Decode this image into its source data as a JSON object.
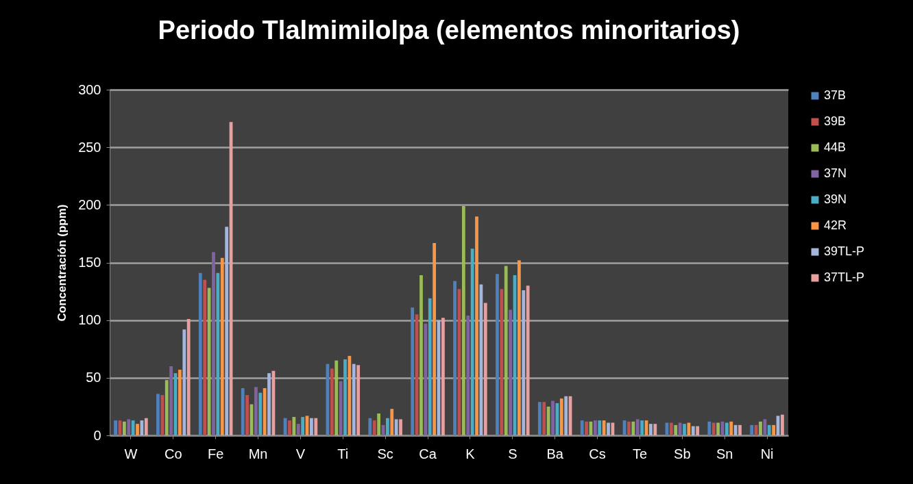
{
  "chart_data": {
    "type": "bar",
    "title": "Periodo Tlalmimilolpa (elementos minoritarios)",
    "ylabel": "Concentración  (ppm)",
    "categories": [
      "W",
      "Co",
      "Fe",
      "Mn",
      "V",
      "Ti",
      "Sc",
      "Ca",
      "K",
      "S",
      "Ba",
      "Cs",
      "Te",
      "Sb",
      "Sn",
      "Ni"
    ],
    "series": [
      {
        "name": "37B",
        "color": "#4f81bd",
        "values": [
          13,
          36,
          141,
          41,
          15,
          62,
          15,
          111,
          134,
          140,
          29,
          13,
          13,
          11,
          12,
          9
        ]
      },
      {
        "name": "39B",
        "color": "#c0504d",
        "values": [
          13,
          35,
          135,
          35,
          13,
          58,
          13,
          105,
          127,
          127,
          29,
          12,
          12,
          11,
          11,
          9
        ]
      },
      {
        "name": "44B",
        "color": "#9bbb59",
        "values": [
          12,
          48,
          128,
          27,
          16,
          65,
          19,
          139,
          199,
          147,
          25,
          12,
          12,
          9,
          11,
          12
        ]
      },
      {
        "name": "37N",
        "color": "#8064a2",
        "values": [
          14,
          60,
          159,
          42,
          10,
          47,
          9,
          97,
          104,
          109,
          30,
          13,
          14,
          11,
          12,
          14
        ]
      },
      {
        "name": "39N",
        "color": "#4bacc6",
        "values": [
          13,
          54,
          141,
          37,
          16,
          66,
          15,
          119,
          162,
          139,
          28,
          13,
          13,
          10,
          11,
          9
        ]
      },
      {
        "name": "42R",
        "color": "#f79646",
        "values": [
          10,
          57,
          154,
          41,
          17,
          69,
          23,
          167,
          190,
          152,
          32,
          13,
          13,
          11,
          12,
          9
        ]
      },
      {
        "name": "39TL-P",
        "color": "#a5b6dc",
        "values": [
          13,
          92,
          181,
          54,
          15,
          62,
          14,
          100,
          131,
          126,
          34,
          11,
          10,
          8,
          9,
          17
        ]
      },
      {
        "name": "37TL-P",
        "color": "#e6a0a0",
        "values": [
          15,
          101,
          272,
          56,
          15,
          61,
          14,
          102,
          115,
          130,
          34,
          11,
          10,
          8,
          9,
          18
        ]
      }
    ],
    "ylim": [
      0,
      300
    ],
    "yticks": [
      0,
      50,
      100,
      150,
      200,
      250,
      300
    ],
    "grid": "y",
    "legend": "right"
  }
}
